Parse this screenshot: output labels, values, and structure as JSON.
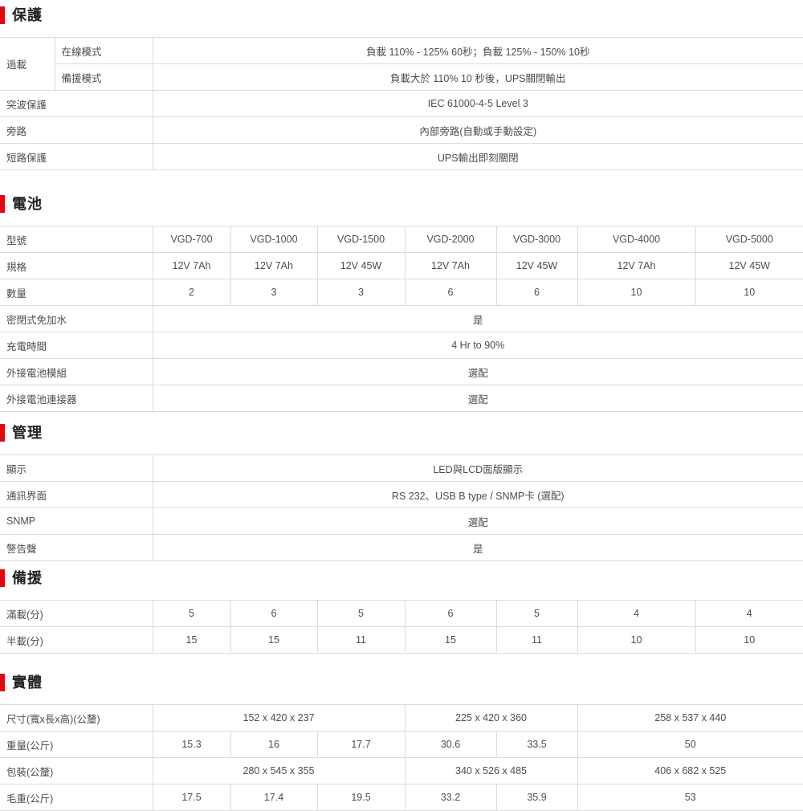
{
  "theme": {
    "accent_red": "#d70c19",
    "border_gray": "#dcdcdc",
    "text_gray": "#4d4d4d",
    "title_color": "#222222",
    "background": "#ffffff"
  },
  "sections": {
    "protection": {
      "title": "保護",
      "overload_label": "過載",
      "rows": {
        "online": {
          "label": "在線模式",
          "value": "負載 110% - 125% 60秒；負載 125% - 150% 10秒"
        },
        "standby": {
          "label": "備援模式",
          "value": "負載大於 110% 10 秒後，UPS關閉輸出"
        },
        "surge": {
          "label": "突波保護",
          "value": "IEC 61000-4-5 Level 3"
        },
        "bypass": {
          "label": "旁路",
          "value": "內部旁路(自動或手動設定)"
        },
        "short_circuit": {
          "label": "短路保護",
          "value": "UPS輸出即刻關閉"
        }
      }
    },
    "battery": {
      "title": "電池",
      "model_label": "型號",
      "models": [
        "VGD-700",
        "VGD-1000",
        "VGD-1500",
        "VGD-2000",
        "VGD-3000",
        "VGD-4000",
        "VGD-5000"
      ],
      "spec_label": "規格",
      "specs": [
        "12V 7Ah",
        "12V 7Ah",
        "12V 45W",
        "12V 7Ah",
        "12V 45W",
        "12V 7Ah",
        "12V 45W"
      ],
      "quantity_label": "數量",
      "quantities": [
        "2",
        "3",
        "3",
        "6",
        "6",
        "10",
        "10"
      ],
      "extra_rows": [
        {
          "label": "密閉式免加水",
          "value": "是"
        },
        {
          "label": "充電時間",
          "value": "4 Hr to 90%"
        },
        {
          "label": "外接電池模組",
          "value": "選配"
        },
        {
          "label": "外接電池連接器",
          "value": "選配"
        }
      ]
    },
    "management": {
      "title": "管理",
      "rows": [
        {
          "label": "顯示",
          "value": "LED與LCD面版顯示"
        },
        {
          "label": "通訊界面",
          "value": "RS 232、USB B type / SNMP卡 (選配)"
        },
        {
          "label": "SNMP",
          "value": "選配"
        },
        {
          "label": "警告聲",
          "value": "是"
        }
      ]
    },
    "backup": {
      "title": "備援",
      "full_load": {
        "label": "滿載(分)",
        "values": [
          "5",
          "6",
          "5",
          "6",
          "5",
          "4",
          "4"
        ]
      },
      "half_load": {
        "label": "半載(分)",
        "values": [
          "15",
          "15",
          "11",
          "15",
          "11",
          "10",
          "10"
        ]
      }
    },
    "physical": {
      "title": "實體",
      "dimension": {
        "label": "尺寸(寬x長x高)(公釐)",
        "values": [
          "152 x 420 x 237",
          "225 x 420 x 360",
          "258 x 537 x 440"
        ]
      },
      "weight": {
        "label": "重量(公斤)",
        "values": [
          "15.3",
          "16",
          "17.7",
          "30.6",
          "33.5",
          "50"
        ]
      },
      "packing": {
        "label": "包裝(公釐)",
        "values": [
          "280 x 545 x 355",
          "340 x 526 x 485",
          "406 x 682 x 525"
        ]
      },
      "gross_weight": {
        "label": "毛重(公斤)",
        "values": [
          "17.5",
          "17.4",
          "19.5",
          "33.2",
          "35.9",
          "53"
        ]
      }
    }
  }
}
